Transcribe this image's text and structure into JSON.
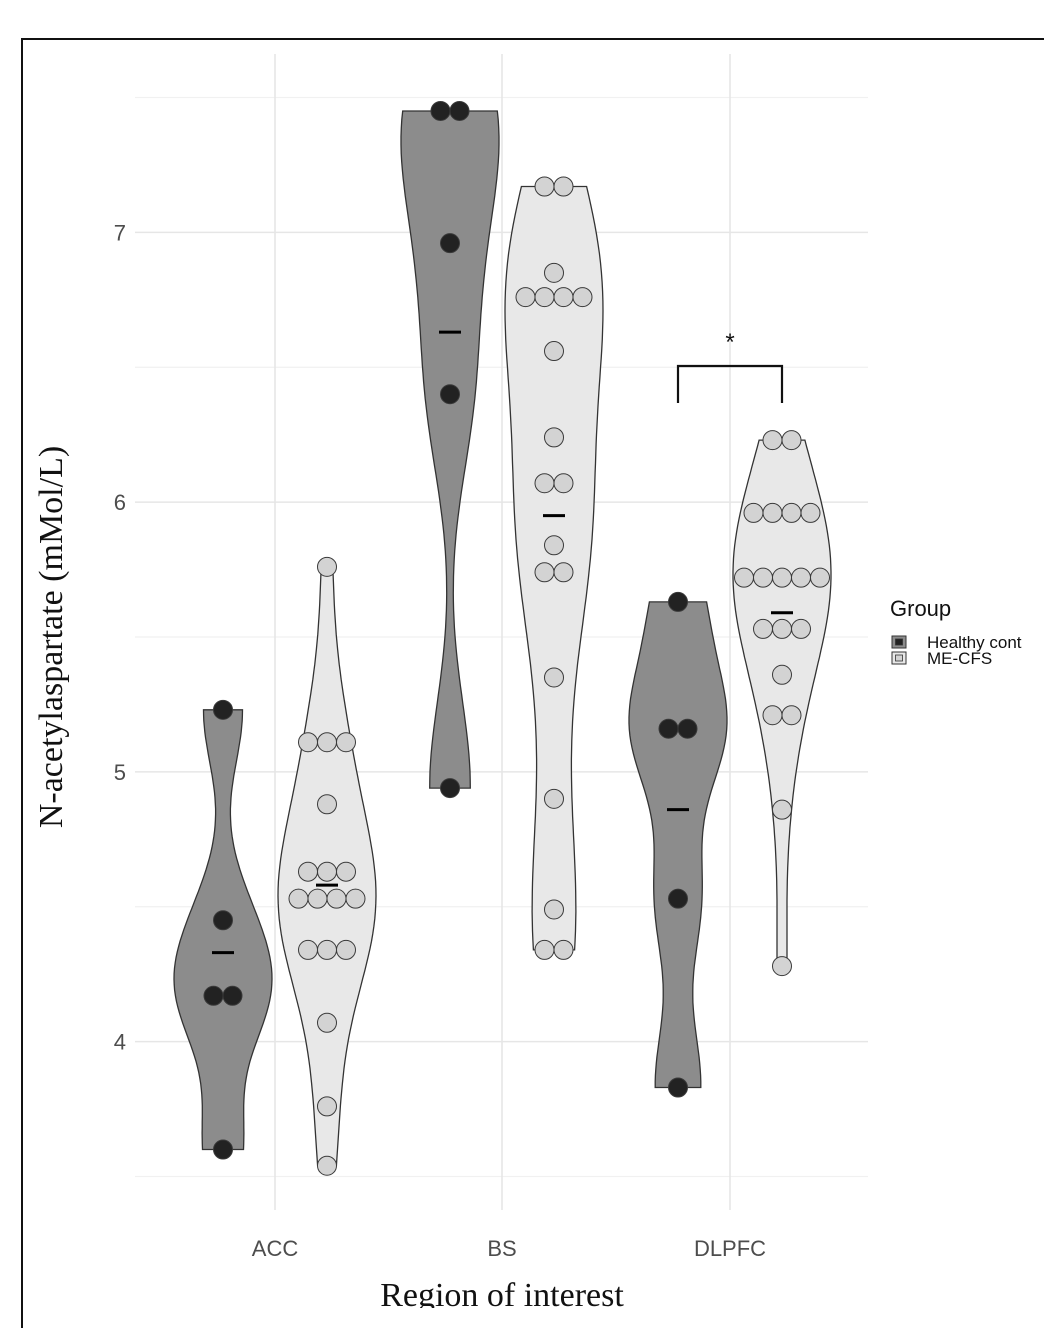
{
  "chart_data": {
    "type": "violin",
    "title": "",
    "xlabel": "Region of interest",
    "ylabel": "N-acetylaspartate (mMol/L)",
    "categories": [
      "ACC",
      "BS",
      "DLPFC"
    ],
    "ylim": [
      3.45,
      7.55
    ],
    "yticks": [
      4,
      5,
      6,
      7
    ],
    "grid": true,
    "legend": {
      "title": "Group",
      "placement": "right"
    },
    "series": [
      {
        "name": "Healthy cont",
        "fill": "#8c8c8c",
        "point_fill": "#222222",
        "groups": [
          {
            "category": "ACC",
            "mean": 4.33,
            "points": [
              5.23,
              4.45,
              4.17,
              4.17,
              3.6
            ]
          },
          {
            "category": "BS",
            "mean": 6.63,
            "points": [
              7.45,
              7.45,
              6.96,
              6.4,
              4.94
            ]
          },
          {
            "category": "DLPFC",
            "mean": 4.86,
            "points": [
              5.63,
              5.16,
              5.16,
              4.53,
              3.83
            ]
          }
        ]
      },
      {
        "name": "ME-CFS",
        "fill": "#e8e8e8",
        "point_fill": "#d3d3d3",
        "groups": [
          {
            "category": "ACC",
            "mean": 4.58,
            "points": [
              5.76,
              5.11,
              5.11,
              5.11,
              4.88,
              4.63,
              4.63,
              4.63,
              4.53,
              4.53,
              4.53,
              4.53,
              4.34,
              4.34,
              4.34,
              4.07,
              3.76,
              3.54
            ]
          },
          {
            "category": "BS",
            "mean": 5.95,
            "points": [
              7.17,
              7.17,
              6.85,
              6.76,
              6.76,
              6.76,
              6.76,
              6.56,
              6.24,
              6.07,
              6.07,
              5.84,
              5.74,
              5.74,
              5.35,
              4.9,
              4.49,
              4.34,
              4.34
            ]
          },
          {
            "category": "DLPFC",
            "mean": 5.59,
            "points": [
              6.23,
              6.23,
              5.96,
              5.96,
              5.96,
              5.96,
              5.72,
              5.72,
              5.72,
              5.72,
              5.72,
              5.53,
              5.53,
              5.53,
              5.36,
              5.21,
              5.21,
              4.86,
              4.28
            ]
          }
        ]
      }
    ],
    "annotations": [
      {
        "category": "DLPFC",
        "text": "*"
      }
    ]
  }
}
